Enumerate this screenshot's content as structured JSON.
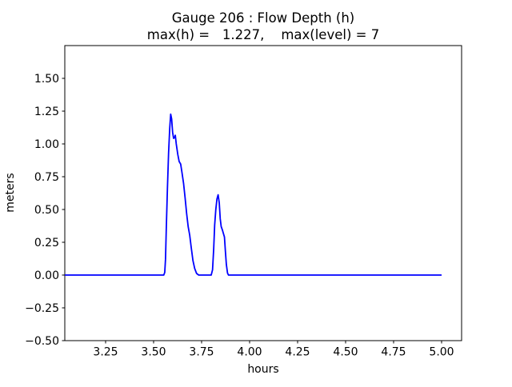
{
  "figure": {
    "background": "#ffffff",
    "frame_color": "#000000"
  },
  "chart_data": {
    "type": "line",
    "title_line1": "Gauge 206 : Flow Depth (h)",
    "title_line2": "max(h) =   1.227,    max(level) = 7",
    "max_h": 1.227,
    "max_level": 7,
    "xlabel": "hours",
    "ylabel": "meters",
    "xlim": [
      3.0375,
      5.1042
    ],
    "ylim": [
      -0.5,
      1.75
    ],
    "grid": false,
    "legend_position": "none",
    "xticks": [
      {
        "value": 3.25,
        "label": "3.25"
      },
      {
        "value": 3.5,
        "label": "3.50"
      },
      {
        "value": 3.75,
        "label": "3.75"
      },
      {
        "value": 4.0,
        "label": "4.00"
      },
      {
        "value": 4.25,
        "label": "4.25"
      },
      {
        "value": 4.5,
        "label": "4.50"
      },
      {
        "value": 4.75,
        "label": "4.75"
      },
      {
        "value": 5.0,
        "label": "5.00"
      }
    ],
    "yticks": [
      {
        "value": -0.5,
        "label": "−0.50"
      },
      {
        "value": -0.25,
        "label": "−0.25"
      },
      {
        "value": 0.0,
        "label": "0.00"
      },
      {
        "value": 0.25,
        "label": "0.25"
      },
      {
        "value": 0.5,
        "label": "0.50"
      },
      {
        "value": 0.75,
        "label": "0.75"
      },
      {
        "value": 1.0,
        "label": "1.00"
      },
      {
        "value": 1.25,
        "label": "1.25"
      },
      {
        "value": 1.5,
        "label": "1.50"
      }
    ],
    "series": [
      {
        "name": "flow-depth-h",
        "color": "#0000ff",
        "linewidth": 1.8,
        "points": [
          [
            3.0375,
            0.0
          ],
          [
            3.553,
            0.0
          ],
          [
            3.558,
            0.02
          ],
          [
            3.562,
            0.12
          ],
          [
            3.566,
            0.35
          ],
          [
            3.572,
            0.66
          ],
          [
            3.578,
            0.93
          ],
          [
            3.584,
            1.12
          ],
          [
            3.589,
            1.227
          ],
          [
            3.594,
            1.19
          ],
          [
            3.599,
            1.09
          ],
          [
            3.604,
            1.043
          ],
          [
            3.609,
            1.048
          ],
          [
            3.613,
            1.066
          ],
          [
            3.618,
            1.0
          ],
          [
            3.626,
            0.92
          ],
          [
            3.633,
            0.866
          ],
          [
            3.641,
            0.846
          ],
          [
            3.648,
            0.78
          ],
          [
            3.656,
            0.7
          ],
          [
            3.664,
            0.59
          ],
          [
            3.672,
            0.47
          ],
          [
            3.68,
            0.37
          ],
          [
            3.688,
            0.305
          ],
          [
            3.696,
            0.21
          ],
          [
            3.705,
            0.11
          ],
          [
            3.714,
            0.05
          ],
          [
            3.724,
            0.012
          ],
          [
            3.735,
            0.0
          ],
          [
            3.8,
            0.0
          ],
          [
            3.807,
            0.04
          ],
          [
            3.813,
            0.2
          ],
          [
            3.818,
            0.38
          ],
          [
            3.824,
            0.5
          ],
          [
            3.83,
            0.58
          ],
          [
            3.836,
            0.612
          ],
          [
            3.842,
            0.55
          ],
          [
            3.847,
            0.43
          ],
          [
            3.852,
            0.37
          ],
          [
            3.858,
            0.345
          ],
          [
            3.864,
            0.315
          ],
          [
            3.869,
            0.29
          ],
          [
            3.874,
            0.18
          ],
          [
            3.879,
            0.08
          ],
          [
            3.885,
            0.015
          ],
          [
            3.89,
            0.0
          ],
          [
            5.0,
            0.0
          ]
        ]
      }
    ]
  }
}
